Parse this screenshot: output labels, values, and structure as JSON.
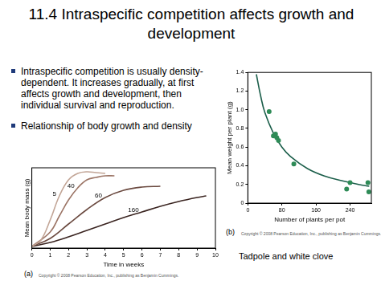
{
  "slide": {
    "title": "11.4 Intraspecific competition affects growth and development",
    "bullets": [
      "Intraspecific competition is usually density-dependent. It increases gradually, at first affects growth and development, then individual survival and reproduction.",
      "Relationship of body growth and density"
    ],
    "caption": "Tadpole  and white clove"
  },
  "chart_data": [
    {
      "type": "line",
      "panel": "(a)",
      "x_label": "Time in weeks",
      "y_label": "Mean body mass (g)",
      "xlim": [
        0,
        10
      ],
      "xticks": [
        0,
        1,
        2,
        3,
        4,
        5,
        6,
        7,
        8,
        9,
        10
      ],
      "ylim": [
        0,
        1
      ],
      "tick_labels": "x",
      "grid": false,
      "credit": "Copyright © 2008 Pearson Education, Inc., publishing as Benjamin Cummings.",
      "series": [
        {
          "name": "5",
          "color": "#c2a596",
          "x": [
            0,
            0.5,
            1,
            1.5,
            2,
            2.5,
            3,
            3.5,
            4
          ],
          "values": [
            0.02,
            0.1,
            0.35,
            0.65,
            0.85,
            0.93,
            0.95,
            0.94,
            0.93
          ]
        },
        {
          "name": "40",
          "color": "#9c7566",
          "x": [
            0,
            1,
            1.5,
            2,
            2.5,
            3,
            3.5,
            4,
            4.5
          ],
          "values": [
            0.02,
            0.2,
            0.4,
            0.6,
            0.75,
            0.85,
            0.88,
            0.9,
            0.9
          ]
        },
        {
          "name": "60",
          "color": "#6b4a40",
          "x": [
            0,
            1,
            2,
            3,
            4,
            5,
            6,
            7
          ],
          "values": [
            0.02,
            0.12,
            0.3,
            0.48,
            0.63,
            0.72,
            0.76,
            0.77
          ]
        },
        {
          "name": "160",
          "color": "#3a2420",
          "x": [
            0,
            1,
            2,
            3,
            4,
            5,
            6,
            7,
            8,
            9,
            9.5
          ],
          "values": [
            0.02,
            0.07,
            0.14,
            0.22,
            0.3,
            0.38,
            0.45,
            0.52,
            0.58,
            0.63,
            0.65
          ]
        }
      ]
    },
    {
      "type": "scatter",
      "panel": "(b)",
      "x_label": "Number of plants per pot",
      "y_label": "Mean weight per plant (g)",
      "xlim": [
        0,
        290
      ],
      "xticks": [
        0,
        80,
        160,
        240
      ],
      "ylim": [
        0,
        1.4
      ],
      "yticks": [
        0,
        0.2,
        0.4,
        0.6,
        0.8,
        {
          "value": 1,
          "label": "1.0"
        },
        1.2,
        1.4
      ],
      "grid": false,
      "credit": "Copyright © 2008 Pearson Education, Inc., publishing as Benjamin Cummings.",
      "series": [
        {
          "type": "scatter",
          "marker": "circle",
          "color": "#2e8b57",
          "x": [
            50,
            60,
            65,
            68,
            72,
            108,
            232,
            240,
            282,
            284
          ],
          "values": [
            0.98,
            0.72,
            0.74,
            0.7,
            0.67,
            0.42,
            0.15,
            0.22,
            0.22,
            0.12
          ]
        },
        {
          "type": "line",
          "line_style": "solid",
          "color": "#1b5e4a",
          "x": [
            20,
            30,
            40,
            60,
            80,
            100,
            140,
            180,
            220,
            260,
            285
          ],
          "values": [
            1.38,
            1.15,
            0.97,
            0.75,
            0.6,
            0.5,
            0.37,
            0.29,
            0.24,
            0.2,
            0.18
          ]
        }
      ]
    }
  ]
}
